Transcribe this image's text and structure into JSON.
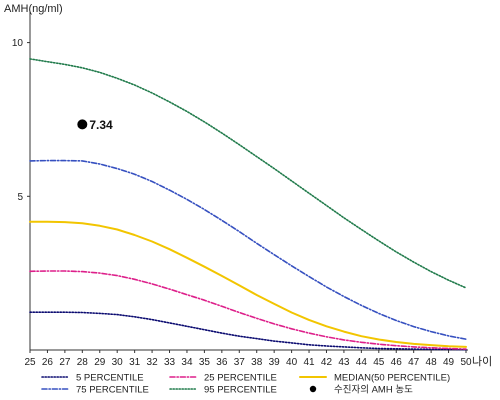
{
  "chart_data": {
    "type": "line",
    "ylabel": "AMH(ng/ml)",
    "xlabel": "나이",
    "x": [
      25,
      26,
      27,
      28,
      29,
      30,
      31,
      32,
      33,
      34,
      35,
      36,
      37,
      38,
      39,
      40,
      41,
      42,
      43,
      44,
      45,
      46,
      47,
      48,
      49,
      50
    ],
    "xlim": [
      25,
      50
    ],
    "ylim": [
      0,
      10.8
    ],
    "yticks": [
      5,
      10
    ],
    "ytick_labels": [
      "5",
      "10"
    ],
    "grid": false,
    "legend_position": "bottom",
    "series": [
      {
        "name": "5 PERCENTILE",
        "color": "#0a0a70",
        "style": "dotted",
        "values": [
          1.23,
          1.23,
          1.23,
          1.22,
          1.19,
          1.15,
          1.08,
          0.99,
          0.88,
          0.77,
          0.66,
          0.55,
          0.45,
          0.37,
          0.29,
          0.23,
          0.17,
          0.13,
          0.1,
          0.07,
          0.05,
          0.04,
          0.03,
          0.02,
          0.02,
          0.01
        ]
      },
      {
        "name": "25 PERCENTILE",
        "color": "#dd1f8a",
        "style": "dashdot",
        "values": [
          2.56,
          2.57,
          2.57,
          2.55,
          2.5,
          2.42,
          2.3,
          2.15,
          1.98,
          1.8,
          1.62,
          1.42,
          1.22,
          1.03,
          0.85,
          0.69,
          0.55,
          0.43,
          0.33,
          0.25,
          0.19,
          0.14,
          0.1,
          0.07,
          0.05,
          0.03
        ]
      },
      {
        "name": "MEDIAN(50 PERCENTILE)",
        "color": "#f2c500",
        "style": "solid",
        "values": [
          4.17,
          4.17,
          4.16,
          4.12,
          4.04,
          3.92,
          3.74,
          3.53,
          3.28,
          3.0,
          2.71,
          2.41,
          2.1,
          1.79,
          1.5,
          1.22,
          0.98,
          0.77,
          0.6,
          0.45,
          0.34,
          0.26,
          0.2,
          0.16,
          0.12,
          0.1
        ]
      },
      {
        "name": "75 PERCENTILE",
        "color": "#3650c0",
        "style": "dashdot",
        "values": [
          6.15,
          6.16,
          6.16,
          6.15,
          6.05,
          5.9,
          5.72,
          5.48,
          5.2,
          4.9,
          4.57,
          4.22,
          3.85,
          3.47,
          3.1,
          2.74,
          2.39,
          2.05,
          1.74,
          1.45,
          1.19,
          0.96,
          0.76,
          0.6,
          0.46,
          0.35
        ]
      },
      {
        "name": "95 PERCENTILE",
        "color": "#1f7a4a",
        "style": "dotted",
        "values": [
          9.47,
          9.38,
          9.29,
          9.18,
          9.03,
          8.84,
          8.62,
          8.36,
          8.07,
          7.76,
          7.42,
          7.06,
          6.68,
          6.29,
          5.9,
          5.5,
          5.1,
          4.7,
          4.3,
          3.92,
          3.55,
          3.19,
          2.86,
          2.55,
          2.27,
          2.02
        ]
      }
    ],
    "points": [
      {
        "name": "수진자의 AMH 농도",
        "x": 28,
        "y": 7.34,
        "label": "7.34",
        "color": "#000000"
      }
    ]
  }
}
